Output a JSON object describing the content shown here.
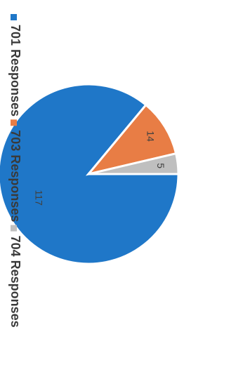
{
  "chart_data": {
    "type": "pie",
    "title": "",
    "series": [
      {
        "values": [
          117,
          14,
          5
        ]
      }
    ],
    "categories": [
      "701 Responses",
      "703 Responses",
      "704 Responses"
    ],
    "values": [
      117,
      14,
      5
    ],
    "colors": [
      "#1f77c8",
      "#e87d45",
      "#bfbfbf"
    ],
    "legend": {
      "placement": "bottom",
      "items": [
        "701 Responses",
        "703 Responses",
        "704 Responses"
      ]
    },
    "data_labels": [
      "117",
      "14",
      "5"
    ]
  }
}
